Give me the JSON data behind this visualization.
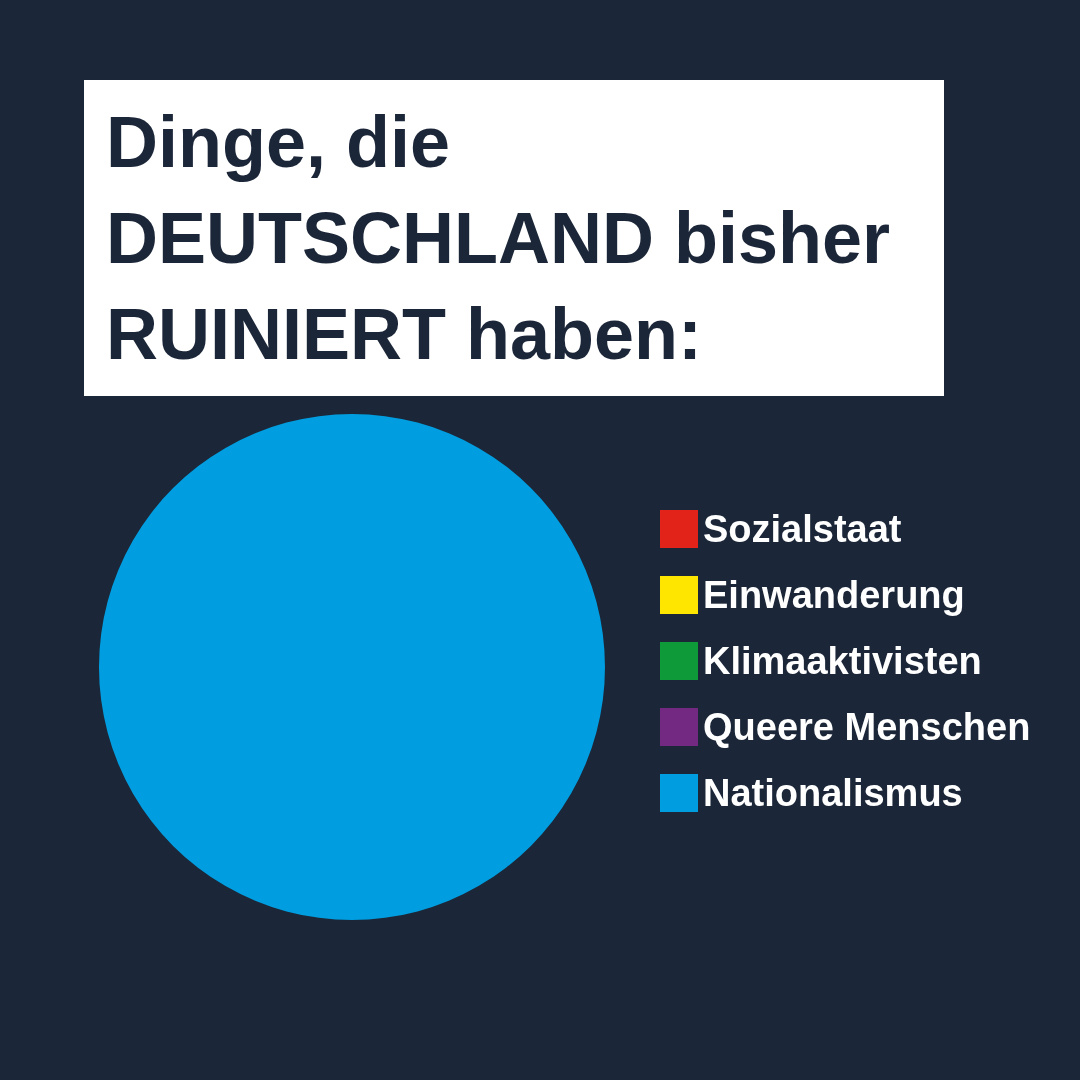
{
  "chart_data": {
    "type": "pie",
    "title": "Dinge, die DEUTSCHLAND bisher RUINIERT haben:",
    "categories": [
      "Sozialstaat",
      "Einwanderung",
      "Klimaaktivisten",
      "Queere Menschen",
      "Nationalismus"
    ],
    "values": [
      0,
      0,
      0,
      0,
      100
    ],
    "colors": [
      "#e2231a",
      "#ffe600",
      "#0f9a3a",
      "#732982",
      "#009ee0"
    ],
    "legend": "right"
  }
}
